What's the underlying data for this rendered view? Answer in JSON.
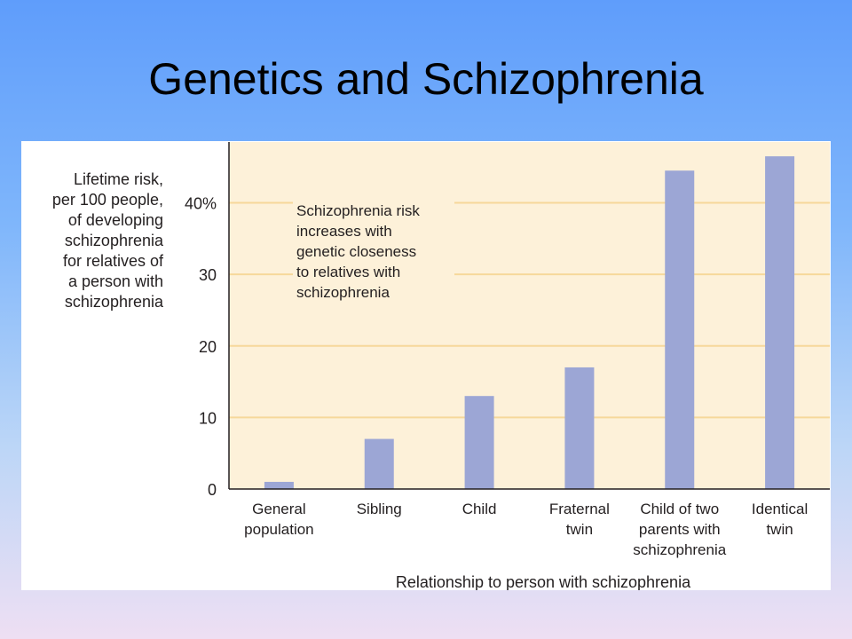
{
  "slide": {
    "title": "Genetics and Schizophrenia"
  },
  "chart_data": {
    "type": "bar",
    "title": "",
    "ylabel": "Lifetime risk,\nper 100 people,\nof developing\nschizophrenia\nfor relatives of\na person with\nschizophrenia",
    "xlabel": "Relationship to person with schizophrenia",
    "annotation": [
      "Schizophrenia risk",
      "increases with",
      "genetic closeness",
      "to relatives with",
      "schizophrenia"
    ],
    "ylim": [
      0,
      48.5
    ],
    "yticks": [
      {
        "value": 0,
        "label": "0"
      },
      {
        "value": 10,
        "label": "10"
      },
      {
        "value": 20,
        "label": "20"
      },
      {
        "value": 30,
        "label": "30"
      },
      {
        "value": 40,
        "label": "40%"
      }
    ],
    "grid": true,
    "categories": [
      [
        "General",
        "population"
      ],
      [
        "Sibling"
      ],
      [
        "Child"
      ],
      [
        "Fraternal",
        "twin"
      ],
      [
        "Child of two",
        "parents with",
        "schizophrenia"
      ],
      [
        "Identical",
        "twin"
      ]
    ],
    "values": [
      1,
      7,
      13,
      17,
      44.5,
      46.5
    ],
    "colors": {
      "plot_bg": "#fdf1d9",
      "gridline": "#f6d89a",
      "bar": "#9ca6d5",
      "axis": "#231f20",
      "text": "#231f20"
    }
  }
}
